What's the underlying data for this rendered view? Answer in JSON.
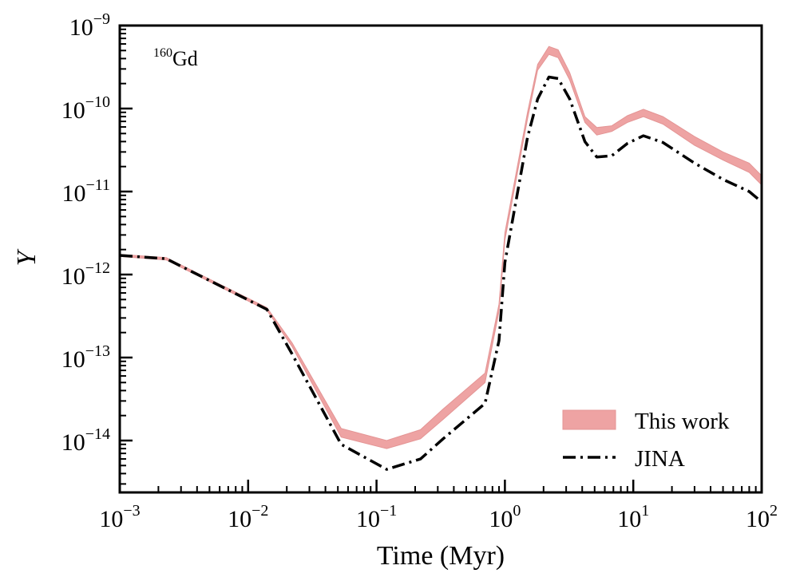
{
  "chart_data": {
    "type": "line",
    "annotation": {
      "mass": "160",
      "element": "Gd"
    },
    "xlabel": "Time (Myr)",
    "ylabel": "Y",
    "xscale": "log",
    "yscale": "log",
    "xlim": [
      0.001,
      100
    ],
    "ylim": [
      2.5e-15,
      1e-09
    ],
    "x_ticks": [
      {
        "base": "10",
        "exp": "−3"
      },
      {
        "base": "10",
        "exp": "−2"
      },
      {
        "base": "10",
        "exp": "−1"
      },
      {
        "base": "10",
        "exp": "0"
      },
      {
        "base": "10",
        "exp": "1"
      },
      {
        "base": "10",
        "exp": "2"
      }
    ],
    "y_ticks": [
      {
        "base": "10",
        "exp": "−9"
      },
      {
        "base": "10",
        "exp": "−10"
      },
      {
        "base": "10",
        "exp": "−11"
      },
      {
        "base": "10",
        "exp": "−12"
      },
      {
        "base": "10",
        "exp": "−13"
      },
      {
        "base": "10",
        "exp": "−14"
      }
    ],
    "legend_position": "lower-right",
    "series": [
      {
        "name": "This work",
        "kind": "band",
        "color": "#eea3a3",
        "x": [
          0.001,
          0.0023,
          0.014,
          0.022,
          0.053,
          0.12,
          0.22,
          0.33,
          0.7,
          0.9,
          1.0,
          1.5,
          1.8,
          2.2,
          2.6,
          3.2,
          4.2,
          5.2,
          6.8,
          9.0,
          12.0,
          17.0,
          30.0,
          50.0,
          80.0,
          100.0
        ],
        "lower": [
          1.65e-12,
          1.5e-12,
          3.7e-13,
          1.35e-13,
          1.1e-14,
          8e-15,
          1.05e-14,
          1.8e-14,
          5e-14,
          3.6e-13,
          2.6e-12,
          7.5e-11,
          2.9e-10,
          4.5e-10,
          4.1e-10,
          2.2e-10,
          6.8e-11,
          4.8e-11,
          5.3e-11,
          6.8e-11,
          8e-11,
          6.5e-11,
          3.6e-11,
          2.4e-11,
          1.7e-11,
          1.2e-11
        ],
        "upper": [
          1.75e-12,
          1.6e-12,
          4e-13,
          1.5e-13,
          1.4e-14,
          1e-14,
          1.35e-14,
          2.4e-14,
          6.5e-14,
          4.4e-13,
          3.2e-12,
          9e-11,
          3.4e-10,
          5.6e-10,
          5.1e-10,
          2.7e-10,
          8e-11,
          5.9e-11,
          6.2e-11,
          8.2e-11,
          9.8e-11,
          8e-11,
          4.6e-11,
          3e-11,
          2.2e-11,
          1.55e-11
        ]
      },
      {
        "name": "JINA",
        "kind": "line",
        "style": "dashdot",
        "color": "#000000",
        "x": [
          0.001,
          0.0023,
          0.014,
          0.022,
          0.053,
          0.12,
          0.22,
          0.33,
          0.7,
          0.9,
          1.0,
          1.5,
          1.8,
          2.2,
          2.6,
          3.2,
          4.2,
          5.2,
          6.8,
          9.0,
          12.0,
          17.0,
          30.0,
          50.0,
          80.0,
          100.0
        ],
        "y": [
          1.7e-12,
          1.55e-12,
          3.8e-13,
          1.1e-13,
          9e-15,
          4.5e-15,
          6e-15,
          1.05e-14,
          2.8e-14,
          1.6e-13,
          1.4e-12,
          4.5e-11,
          1.3e-10,
          2.4e-10,
          2.3e-10,
          1.3e-10,
          4e-11,
          2.6e-11,
          2.7e-11,
          3.8e-11,
          4.7e-11,
          3.9e-11,
          2.2e-11,
          1.4e-11,
          1e-11,
          7.5e-12
        ]
      }
    ]
  }
}
